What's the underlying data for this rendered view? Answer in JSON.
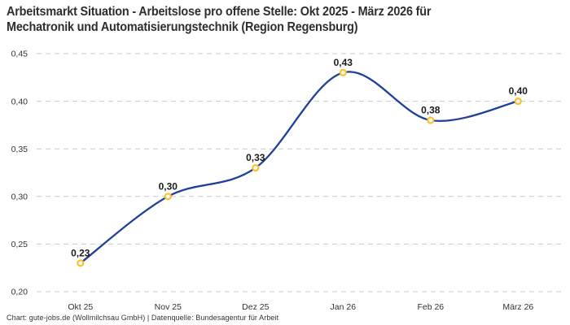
{
  "header": {
    "title_line1": "Arbeitsmarkt Situation - Arbeitslose pro offene Stelle: Okt 2025 - März 2026 für",
    "title_line2": "Mechatronik und Automatisierungstechnik (Region Regensburg)"
  },
  "chart_data": {
    "type": "line",
    "title": "Arbeitsmarkt Situation - Arbeitslose pro offene Stelle: Okt 2025 - März 2026 für Mechatronik und Automatisierungstechnik (Region Regensburg)",
    "categories": [
      "Okt 25",
      "Nov 25",
      "Dez 25",
      "Jan 26",
      "Feb 26",
      "März 26"
    ],
    "values": [
      0.23,
      0.3,
      0.33,
      0.43,
      0.38,
      0.4
    ],
    "value_labels": [
      "0,23",
      "0,30",
      "0,33",
      "0,43",
      "0,38",
      "0,40"
    ],
    "xlabel": "",
    "ylabel": "",
    "ylim": [
      0.2,
      0.45
    ],
    "yticks": [
      0.2,
      0.25,
      0.3,
      0.35,
      0.4,
      0.45
    ],
    "ytick_labels": [
      "0,20",
      "0,25",
      "0,30",
      "0,35",
      "0,40",
      "0,45"
    ],
    "grid": "horizontal-dashed",
    "legend": "none",
    "curve": "smooth",
    "marker": "open-circle"
  },
  "colors": {
    "line": "#20409a",
    "marker": "#fcc02f",
    "marker_fill": "#ffffff",
    "grid": "#c9c9c9",
    "title_text": "#2e2e2e",
    "axis_text": "#333333",
    "value_label_text": "#1a1a1a",
    "background": "#ffffff"
  },
  "footer": {
    "text": "Chart: gute-jobs.de (Wollmilchsau GmbH) | Datenquelle: Bundesagentur für Arbeit"
  }
}
